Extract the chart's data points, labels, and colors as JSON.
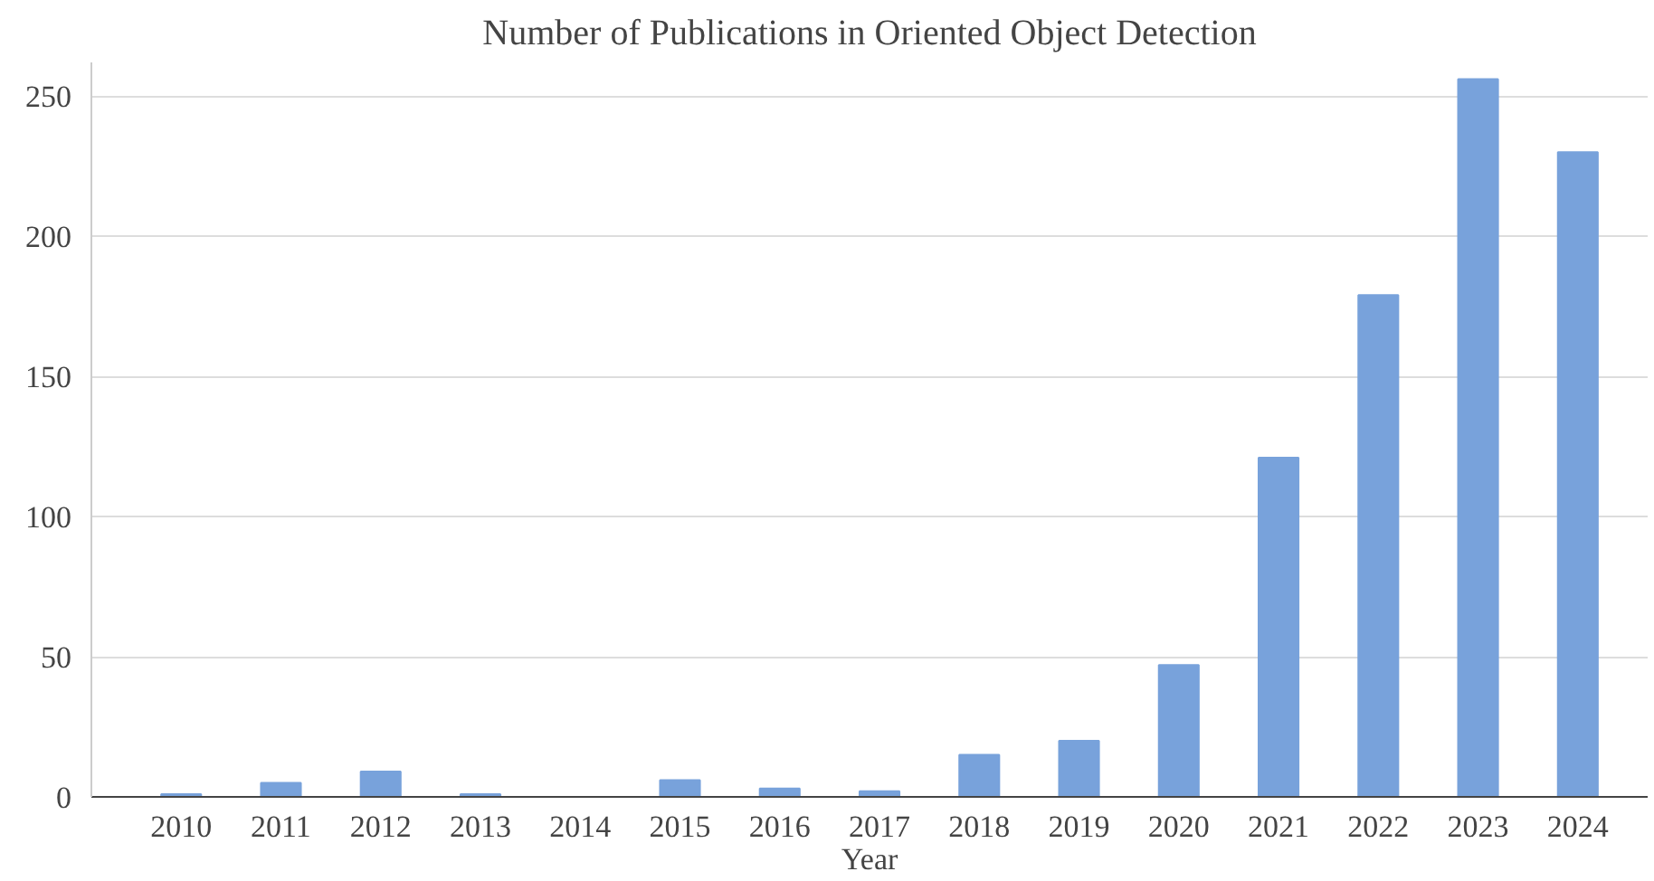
{
  "chart_data": {
    "type": "bar",
    "title": "Number of Publications in Oriented Object Detection",
    "xlabel": "Year",
    "categories": [
      "2010",
      "2011",
      "2012",
      "2013",
      "2014",
      "2015",
      "2016",
      "2017",
      "2018",
      "2019",
      "2020",
      "2021",
      "2022",
      "2023",
      "2024"
    ],
    "values": [
      1,
      5,
      9,
      1,
      0,
      6,
      3,
      2,
      15,
      20,
      47,
      121,
      179,
      256,
      230
    ],
    "color": "#78a2db",
    "ylim": [
      0,
      262
    ],
    "yticks": [
      0,
      50,
      100,
      150,
      200,
      250
    ],
    "grid": "y"
  }
}
